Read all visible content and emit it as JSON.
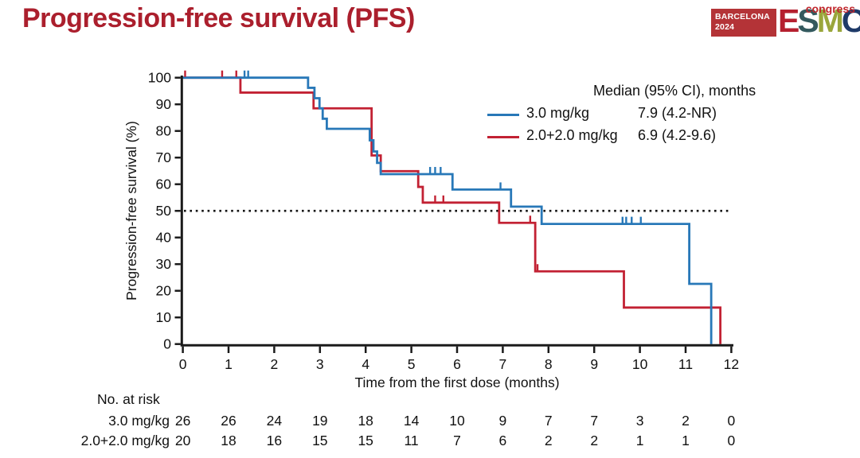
{
  "header": {
    "title": "Progression-free survival (PFS)",
    "title_color": "#ab1f2d",
    "logo": {
      "venue_line1": "BARCELONA",
      "venue_line2": "2024",
      "letters": [
        "E",
        "S",
        "M",
        "O"
      ],
      "letter_colors": [
        "#b5202f",
        "#33595e",
        "#9aa63b",
        "#1e3a68"
      ],
      "box_color": "#b43337",
      "congress": "congress",
      "congress_color": "#c1272d"
    }
  },
  "legend": {
    "header": "Median (95% CI), months",
    "rows": [
      {
        "label": "3.0 mg/kg",
        "median": "7.9 (4.2-NR)",
        "color": "#2878b8"
      },
      {
        "label": "2.0+2.0 mg/kg",
        "median": "6.9 (4.2-9.6)",
        "color": "#c22133"
      }
    ]
  },
  "chart_data": {
    "type": "line",
    "subtype": "kaplan-meier-step",
    "title": "Progression-free survival (PFS)",
    "xlabel": "Time from the first dose (months)",
    "ylabel": "Progression-free survival (%)",
    "xlim": [
      0,
      12
    ],
    "ylim": [
      0,
      100
    ],
    "xticks": [
      0,
      1,
      2,
      3,
      4,
      5,
      6,
      7,
      8,
      9,
      10,
      11,
      12
    ],
    "yticks": [
      0,
      10,
      20,
      30,
      40,
      50,
      60,
      70,
      80,
      90,
      100
    ],
    "grid": false,
    "reference_line_y": 50,
    "legend_position": "top-right",
    "series": [
      {
        "name": "3.0 mg/kg",
        "color": "#2878b8",
        "median_95ci_months": "7.9 (4.2-NR)",
        "steps": [
          [
            0,
            100
          ],
          [
            2.74,
            96.2
          ],
          [
            2.88,
            92.3
          ],
          [
            2.99,
            88.5
          ],
          [
            3.06,
            84.6
          ],
          [
            3.15,
            80.8
          ],
          [
            4.09,
            76.5
          ],
          [
            4.17,
            72.3
          ],
          [
            4.25,
            68.0
          ],
          [
            4.33,
            63.8
          ],
          [
            5.9,
            58.0
          ],
          [
            7.18,
            51.6
          ],
          [
            7.85,
            45.1
          ],
          [
            11.08,
            22.6
          ],
          [
            11.56,
            0
          ]
        ],
        "censor_marks": [
          [
            1.35,
            100
          ],
          [
            1.43,
            100
          ],
          [
            5.41,
            63.8
          ],
          [
            5.52,
            63.8
          ],
          [
            5.64,
            63.8
          ],
          [
            6.95,
            58.0
          ],
          [
            9.62,
            45.1
          ],
          [
            9.7,
            45.1
          ],
          [
            9.82,
            45.1
          ],
          [
            10.02,
            45.1
          ]
        ]
      },
      {
        "name": "2.0+2.0 mg/kg",
        "color": "#c22133",
        "median_95ci_months": "6.9 (4.2-9.6)",
        "steps": [
          [
            0,
            100
          ],
          [
            1.26,
            94.4
          ],
          [
            2.86,
            88.5
          ],
          [
            4.13,
            70.8
          ],
          [
            4.33,
            64.9
          ],
          [
            5.15,
            59.0
          ],
          [
            5.25,
            53.1
          ],
          [
            6.92,
            45.5
          ],
          [
            7.71,
            27.3
          ],
          [
            9.65,
            13.7
          ],
          [
            11.76,
            0
          ]
        ],
        "censor_marks": [
          [
            0.05,
            100
          ],
          [
            0.86,
            100
          ],
          [
            1.17,
            100
          ],
          [
            5.52,
            53.1
          ],
          [
            5.7,
            53.1
          ],
          [
            7.6,
            45.5
          ],
          [
            7.76,
            27.3
          ]
        ]
      }
    ],
    "at_risk": {
      "title": "No. at risk",
      "times": [
        0,
        1,
        2,
        3,
        4,
        5,
        6,
        7,
        8,
        9,
        10,
        11,
        12
      ],
      "rows": [
        {
          "name": "3.0 mg/kg",
          "values": [
            26,
            26,
            24,
            19,
            18,
            14,
            10,
            9,
            7,
            7,
            3,
            2,
            0
          ]
        },
        {
          "name": "2.0+2.0 mg/kg",
          "values": [
            20,
            18,
            16,
            15,
            15,
            11,
            7,
            6,
            2,
            2,
            1,
            1,
            0
          ]
        }
      ]
    }
  }
}
